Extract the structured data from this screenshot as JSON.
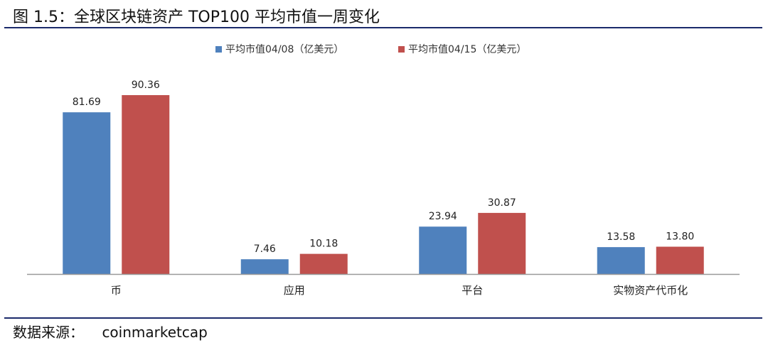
{
  "header": {
    "title": "图 1.5：全球区块链资产 TOP100 平均市值一周变化"
  },
  "footer": {
    "source_label": "数据来源：",
    "source_value": "coinmarketcap"
  },
  "colors": {
    "rule": "#1b2a6b",
    "series_1": "#4f81bd",
    "series_2": "#c0504d",
    "axis": "#999999"
  },
  "chart_data": {
    "type": "bar",
    "categories": [
      "币",
      "应用",
      "平台",
      "实物资产代币化"
    ],
    "series": [
      {
        "name": "平均市值04/08（亿美元）",
        "values": [
          81.69,
          7.46,
          23.94,
          13.58
        ],
        "labels": [
          "81.69",
          "7.46",
          "23.94",
          "13.58"
        ]
      },
      {
        "name": "平均市值04/15（亿美元）",
        "values": [
          90.36,
          10.18,
          30.87,
          13.8
        ],
        "labels": [
          "90.36",
          "10.18",
          "30.87",
          "13.80"
        ]
      }
    ],
    "ylim": [
      0,
      90.36
    ],
    "legend_position": "top-center",
    "grid": false
  }
}
